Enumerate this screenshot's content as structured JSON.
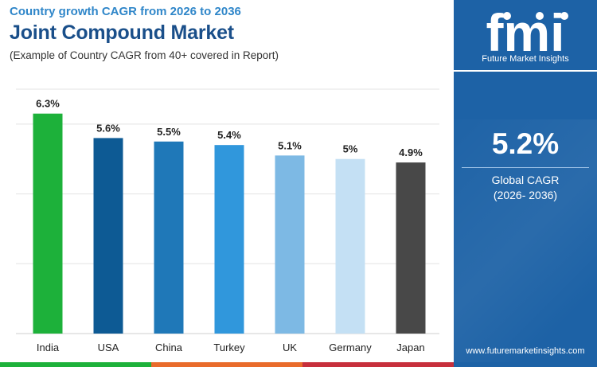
{
  "header": {
    "subtitle": "Country growth CAGR from 2026 to 2036",
    "title": "Joint Compound Market",
    "note": "(Example of Country CAGR from 40+ covered in Report)"
  },
  "sidebar": {
    "logo_text": "fmi",
    "logo_caption": "Future Market Insights",
    "global_value": "5.2%",
    "global_label": "Global CAGR",
    "global_period": "(2026- 2036)",
    "url": "www.futuremarketinsights.com",
    "background": "#1d62a6"
  },
  "chart_data": {
    "type": "bar",
    "categories": [
      "India",
      "USA",
      "China",
      "Turkey",
      "UK",
      "Germany",
      "Japan"
    ],
    "values": [
      6.3,
      5.6,
      5.5,
      5.4,
      5.1,
      5.0,
      4.9
    ],
    "value_labels": [
      "6.3%",
      "5.6%",
      "5.5%",
      "5.4%",
      "5.1%",
      "5%",
      "4.9%"
    ],
    "colors": [
      "#1db13a",
      "#0d5a94",
      "#1f78b8",
      "#3097dc",
      "#7db9e4",
      "#c4e0f4",
      "#484848"
    ],
    "ylim": [
      0,
      7
    ],
    "grid": true,
    "legend": "none"
  },
  "bottom_band": [
    "#1db13a",
    "#e96b2b",
    "#c72f3c",
    "#1d62a6"
  ]
}
